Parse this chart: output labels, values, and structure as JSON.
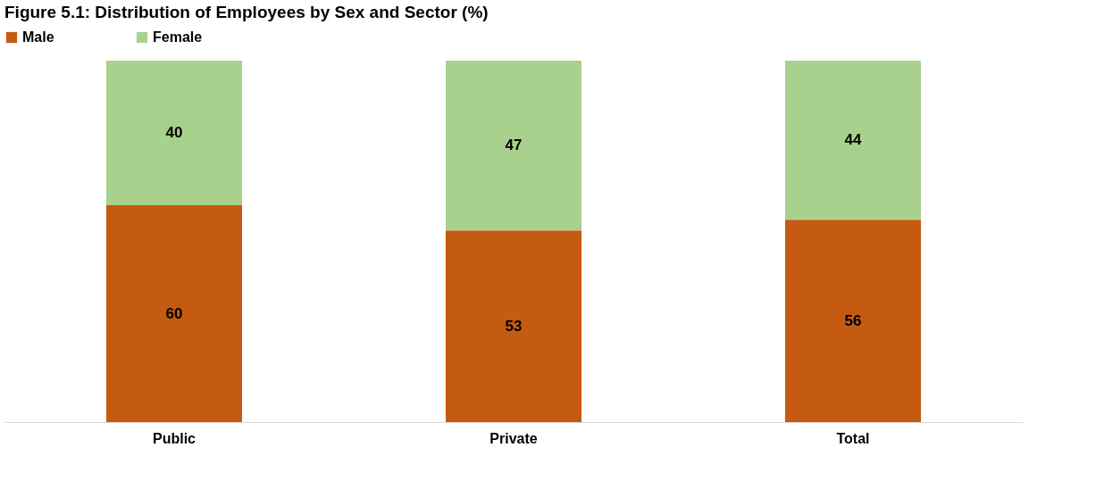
{
  "chart_data": {
    "type": "bar",
    "title": "Figure 5.1: Distribution of Employees by Sex and Sector (%)",
    "categories": [
      "Public",
      "Private",
      "Total"
    ],
    "stacked": true,
    "data_labels": true,
    "legend": "top",
    "ylim": [
      0,
      100
    ],
    "grid": false,
    "tick_labels": "x",
    "series": [
      {
        "name": "Male",
        "color": "#c55a11",
        "values": [
          60,
          53,
          56
        ]
      },
      {
        "name": "Female",
        "color": "#a9d18e",
        "values": [
          40,
          47,
          44
        ]
      }
    ]
  }
}
